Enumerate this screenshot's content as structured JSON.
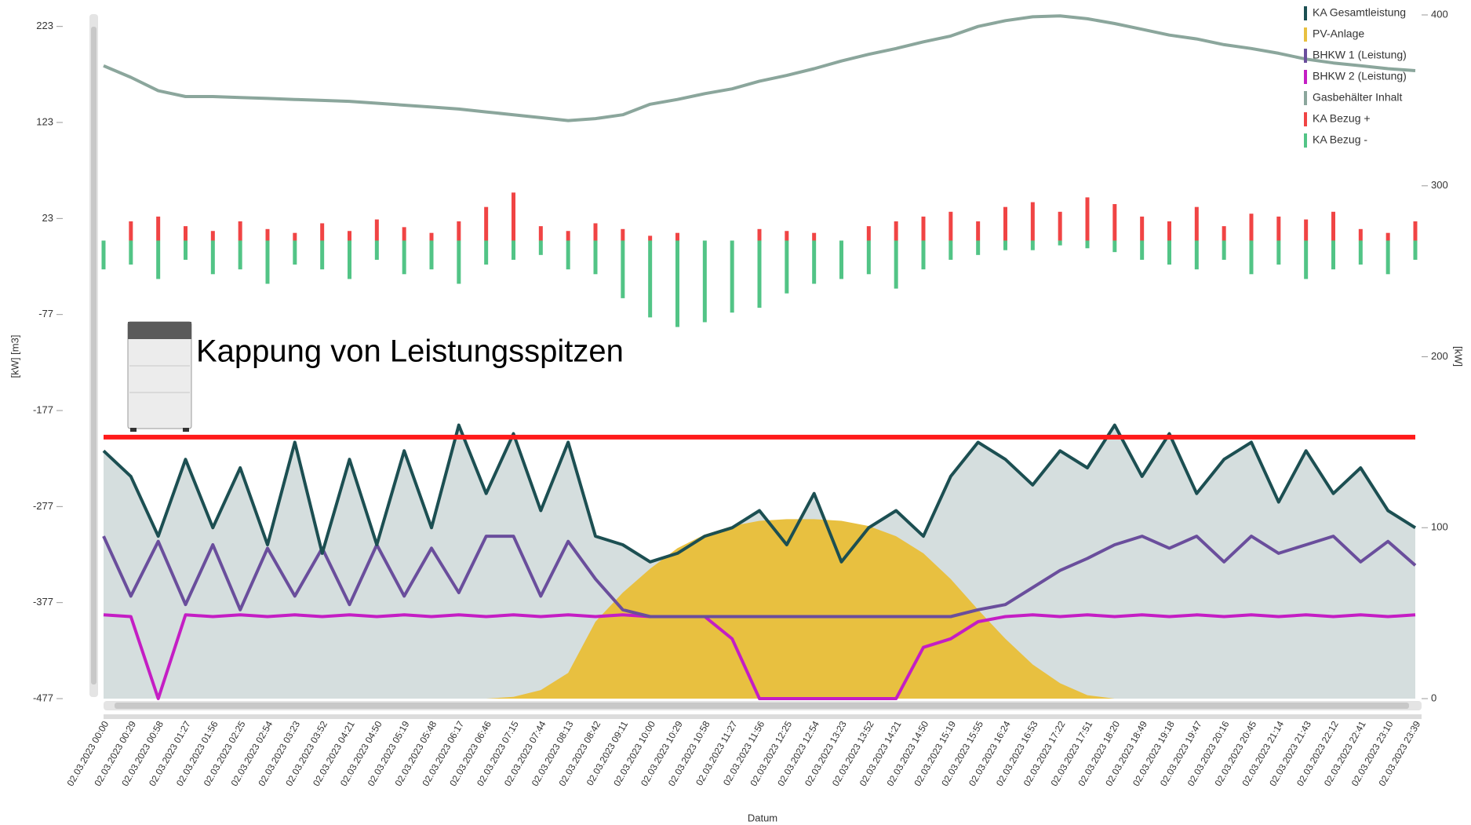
{
  "chart_data": {
    "type": "combo",
    "annotation": "Kappung von Leistungsspitzen",
    "x_label": "Datum",
    "y_label": "[kW]  [m3]",
    "y2_label": "[kW]",
    "legend": "top-right",
    "categories": [
      "02.03.2023 00:00",
      "02.03.2023 00:29",
      "02.03.2023 00:58",
      "02.03.2023 01:27",
      "02.03.2023 01:56",
      "02.03.2023 02:25",
      "02.03.2023 02:54",
      "02.03.2023 03:23",
      "02.03.2023 03:52",
      "02.03.2023 04:21",
      "02.03.2023 04:50",
      "02.03.2023 05:19",
      "02.03.2023 05:48",
      "02.03.2023 06:17",
      "02.03.2023 06:46",
      "02.03.2023 07:15",
      "02.03.2023 07:44",
      "02.03.2023 08:13",
      "02.03.2023 08:42",
      "02.03.2023 09:11",
      "02.03.2023 10:00",
      "02.03.2023 10:29",
      "02.03.2023 10:58",
      "02.03.2023 11:27",
      "02.03.2023 11:56",
      "02.03.2023 12:25",
      "02.03.2023 12:54",
      "02.03.2023 13:23",
      "02.03.2023 13:52",
      "02.03.2023 14:21",
      "02.03.2023 14:50",
      "02.03.2023 15:19",
      "02.03.2023 15:55",
      "02.03.2023 16:24",
      "02.03.2023 16:53",
      "02.03.2023 17:22",
      "02.03.2023 17:51",
      "02.03.2023 18:20",
      "02.03.2023 18:49",
      "02.03.2023 19:18",
      "02.03.2023 19:47",
      "02.03.2023 20:16",
      "02.03.2023 20:45",
      "02.03.2023 21:14",
      "02.03.2023 21:43",
      "02.03.2023 22:12",
      "02.03.2023 22:41",
      "02.03.2023 23:10",
      "02.03.2023 23:39"
    ],
    "ylim": [
      -477,
      235
    ],
    "yticks": [
      -477,
      -377,
      -277,
      -177,
      -77,
      23,
      123,
      223
    ],
    "y2lim": [
      0,
      400
    ],
    "y2ticks": [
      0,
      100,
      200,
      300,
      400
    ],
    "cap_line": {
      "value": 153,
      "axis": "y2",
      "color": "#ff1a1a"
    },
    "series": [
      {
        "name": "KA Gesamtleistung",
        "color": "#1c4f52",
        "area_color": "#d5dede",
        "kind": "line",
        "axis": "y2",
        "values": [
          145,
          130,
          95,
          140,
          100,
          135,
          90,
          150,
          85,
          140,
          90,
          145,
          100,
          160,
          120,
          155,
          110,
          150,
          95,
          90,
          80,
          85,
          95,
          100,
          110,
          90,
          120,
          80,
          100,
          110,
          95,
          130,
          150,
          140,
          125,
          145,
          135,
          160,
          130,
          155,
          120,
          140,
          150,
          115,
          145,
          120,
          135,
          110,
          100
        ]
      },
      {
        "name": "PV-Anlage",
        "color": "#e8c040",
        "kind": "area",
        "axis": "y2",
        "values": [
          0,
          0,
          0,
          0,
          0,
          0,
          0,
          0,
          0,
          0,
          0,
          0,
          0,
          0,
          0,
          1,
          5,
          15,
          45,
          62,
          76,
          88,
          96,
          101,
          104,
          105,
          105,
          104,
          101,
          95,
          85,
          70,
          52,
          35,
          20,
          9,
          2,
          0,
          0,
          0,
          0,
          0,
          0,
          0,
          0,
          0,
          0,
          0,
          0
        ]
      },
      {
        "name": "BHKW 1 (Leistung)",
        "color": "#6a4e9c",
        "kind": "line",
        "axis": "y2",
        "values": [
          95,
          60,
          92,
          55,
          90,
          52,
          88,
          60,
          88,
          55,
          90,
          60,
          88,
          62,
          95,
          95,
          60,
          92,
          70,
          52,
          48,
          48,
          48,
          48,
          48,
          48,
          48,
          48,
          48,
          48,
          48,
          48,
          52,
          55,
          65,
          75,
          82,
          90,
          95,
          88,
          95,
          80,
          95,
          85,
          90,
          95,
          80,
          92,
          78
        ]
      },
      {
        "name": "BHKW 2 (Leistung)",
        "color": "#c41ec4",
        "kind": "line",
        "axis": "y2",
        "values": [
          49,
          48,
          0,
          49,
          48,
          49,
          48,
          49,
          48,
          49,
          48,
          49,
          48,
          49,
          48,
          49,
          48,
          49,
          48,
          49,
          48,
          48,
          48,
          35,
          0,
          0,
          0,
          0,
          0,
          0,
          30,
          35,
          45,
          48,
          49,
          48,
          49,
          48,
          49,
          48,
          49,
          48,
          49,
          48,
          49,
          48,
          49,
          48,
          49
        ]
      },
      {
        "name": "Gasbehälter Inhalt",
        "color": "#8ba69c",
        "kind": "line",
        "axis": "y",
        "values": [
          182,
          170,
          156,
          150,
          150,
          149,
          148,
          147,
          146,
          145,
          143,
          141,
          139,
          137,
          134,
          131,
          128,
          125,
          127,
          131,
          142,
          147,
          153,
          158,
          166,
          172,
          179,
          187,
          194,
          200,
          207,
          213,
          223,
          229,
          233,
          234,
          231,
          226,
          220,
          214,
          210,
          204,
          200,
          195,
          189,
          185,
          182,
          179,
          177
        ]
      },
      {
        "name": "KA Bezug +",
        "color": "#f04444",
        "kind": "bar",
        "axis": "y",
        "values": [
          0,
          20,
          25,
          15,
          10,
          20,
          12,
          8,
          18,
          10,
          22,
          14,
          8,
          20,
          35,
          50,
          15,
          10,
          18,
          12,
          5,
          8,
          0,
          0,
          12,
          10,
          8,
          0,
          15,
          20,
          25,
          30,
          20,
          35,
          40,
          30,
          45,
          38,
          25,
          20,
          35,
          15,
          28,
          25,
          22,
          30,
          12,
          8,
          20
        ]
      },
      {
        "name": "KA Bezug -",
        "color": "#52c486",
        "kind": "bar",
        "axis": "y",
        "values": [
          -30,
          -25,
          -40,
          -20,
          -35,
          -30,
          -45,
          -25,
          -30,
          -40,
          -20,
          -35,
          -30,
          -45,
          -25,
          -20,
          -15,
          -30,
          -35,
          -60,
          -80,
          -90,
          -85,
          -75,
          -70,
          -55,
          -45,
          -40,
          -35,
          -50,
          -30,
          -20,
          -15,
          -10,
          -10,
          -5,
          -8,
          -12,
          -20,
          -25,
          -30,
          -20,
          -35,
          -25,
          -40,
          -30,
          -25,
          -35,
          -20
        ]
      }
    ]
  }
}
